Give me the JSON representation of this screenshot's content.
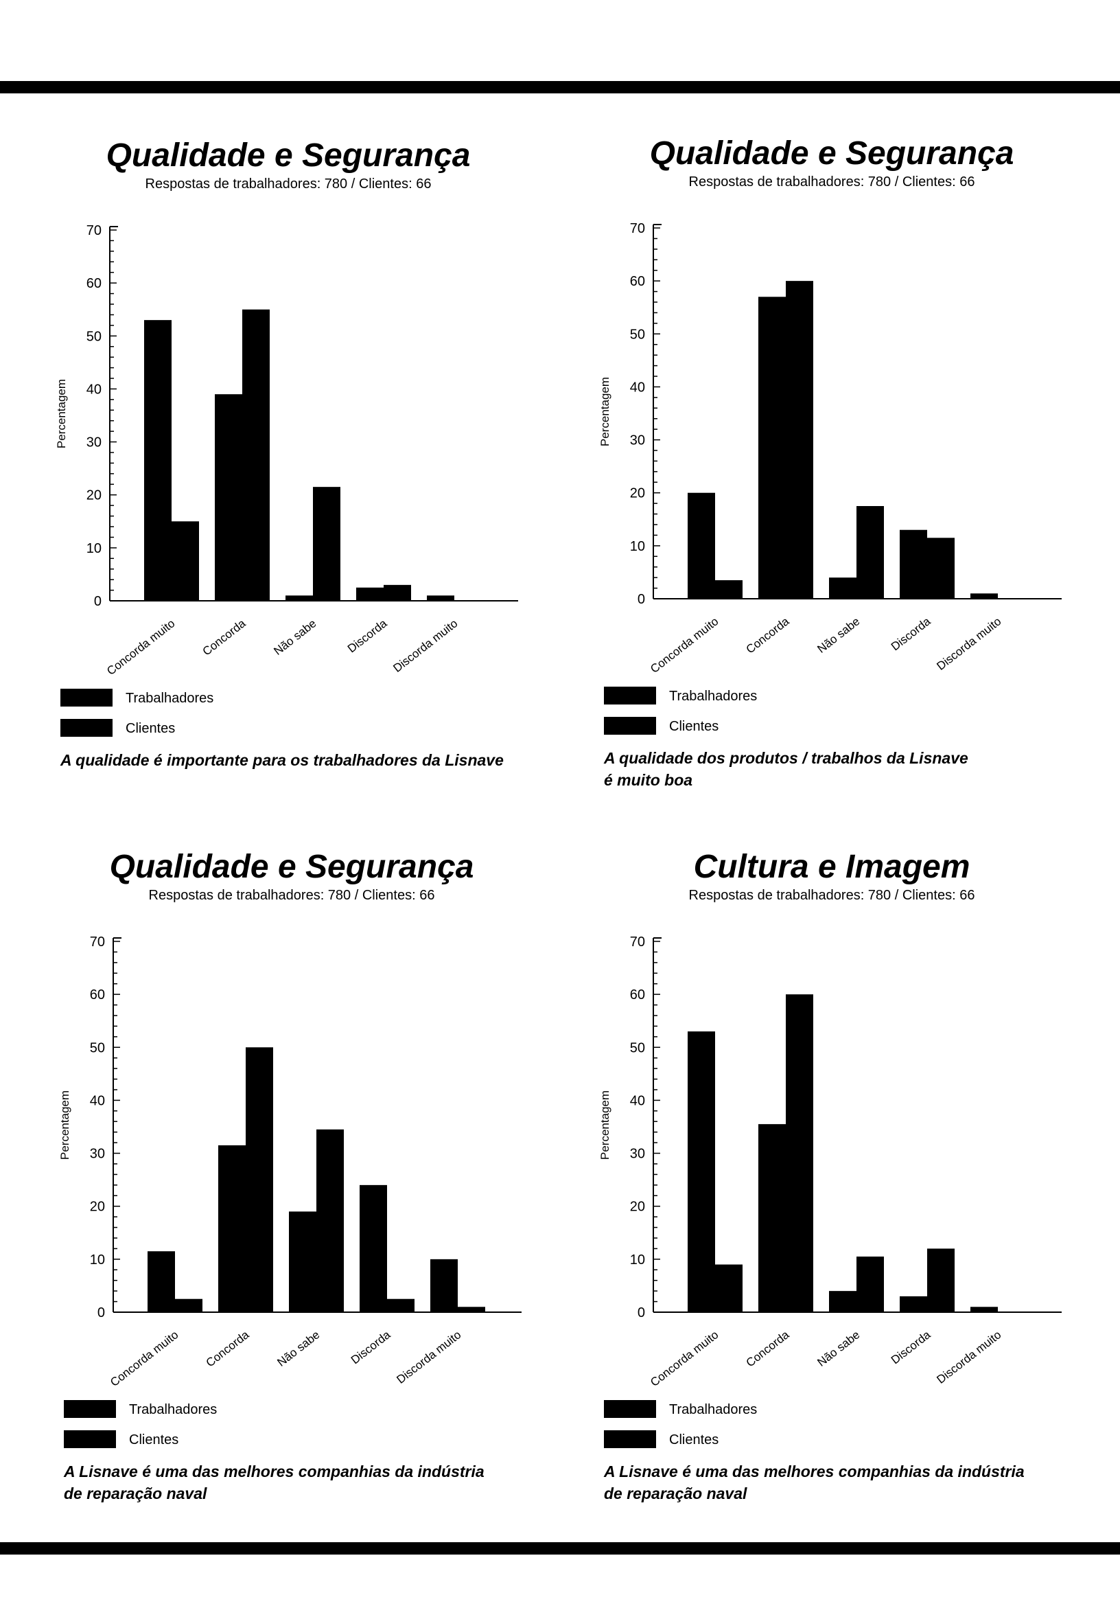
{
  "chart_data": [
    {
      "type": "bar",
      "title": "Qualidade e Segurança",
      "subtitle": "Respostas de trabalhadores: 780 / Clientes: 66",
      "ylabel": "Percentagem",
      "ylim": [
        0,
        70
      ],
      "yticks": [
        "0",
        "10",
        "20",
        "30",
        "40",
        "50",
        "60",
        "70"
      ],
      "categories": [
        "Concorda muito",
        "Concorda",
        "Não sabe",
        "Discorda",
        "Discorda muito"
      ],
      "series": [
        {
          "name": "Trabalhadores",
          "values": [
            53,
            39,
            1,
            2.5,
            1
          ]
        },
        {
          "name": "Clientes",
          "values": [
            15,
            55,
            21.5,
            3,
            0
          ]
        }
      ],
      "caption": [
        "A qualidade é importante para os trabalhadores da Lisnave"
      ]
    },
    {
      "type": "bar",
      "title": "Qualidade e Segurança",
      "subtitle": "Respostas de trabalhadores: 780 / Clientes: 66",
      "ylabel": "Percentagem",
      "ylim": [
        0,
        70
      ],
      "yticks": [
        "0",
        "10",
        "20",
        "30",
        "40",
        "50",
        "60",
        "70"
      ],
      "categories": [
        "Concorda muito",
        "Concorda",
        "Não sabe",
        "Discorda",
        "Discorda muito"
      ],
      "series": [
        {
          "name": "Trabalhadores",
          "values": [
            20,
            57,
            4,
            13,
            1
          ]
        },
        {
          "name": "Clientes",
          "values": [
            3.5,
            60,
            17.5,
            11.5,
            0
          ]
        }
      ],
      "caption": [
        "A qualidade dos produtos / trabalhos da Lisnave",
        "é muito boa"
      ]
    },
    {
      "type": "bar",
      "title": "Qualidade e Segurança",
      "subtitle": "Respostas de trabalhadores: 780 / Clientes: 66",
      "ylabel": "Percentagem",
      "ylim": [
        0,
        70
      ],
      "yticks": [
        "0",
        "10",
        "20",
        "30",
        "40",
        "50",
        "60",
        "70"
      ],
      "categories": [
        "Concorda muito",
        "Concorda",
        "Não sabe",
        "Discorda",
        "Discorda muito"
      ],
      "series": [
        {
          "name": "Trabalhadores",
          "values": [
            11.5,
            31.5,
            19,
            24,
            10
          ]
        },
        {
          "name": "Clientes",
          "values": [
            2.5,
            50,
            34.5,
            2.5,
            1
          ]
        }
      ],
      "caption": [
        "A Lisnave é uma das melhores companhias da indústria",
        "de reparação naval"
      ]
    },
    {
      "type": "bar",
      "title": "Cultura e Imagem",
      "subtitle": "Respostas de trabalhadores: 780 / Clientes: 66",
      "ylabel": "Percentagem",
      "ylim": [
        0,
        70
      ],
      "yticks": [
        "0",
        "10",
        "20",
        "30",
        "40",
        "50",
        "60",
        "70"
      ],
      "categories": [
        "Concorda muito",
        "Concorda",
        "Não sabe",
        "Discorda",
        "Discorda muito"
      ],
      "series": [
        {
          "name": "Trabalhadores",
          "values": [
            53,
            35.5,
            4,
            3,
            1
          ]
        },
        {
          "name": "Clientes",
          "values": [
            9,
            60,
            10.5,
            12,
            0
          ]
        }
      ],
      "caption": [
        "A Lisnave é uma das melhores companhias da indústria",
        "de reparação naval"
      ]
    }
  ],
  "colors": {
    "bars": "#000000",
    "axis": "#000000",
    "background": "#ffffff"
  }
}
